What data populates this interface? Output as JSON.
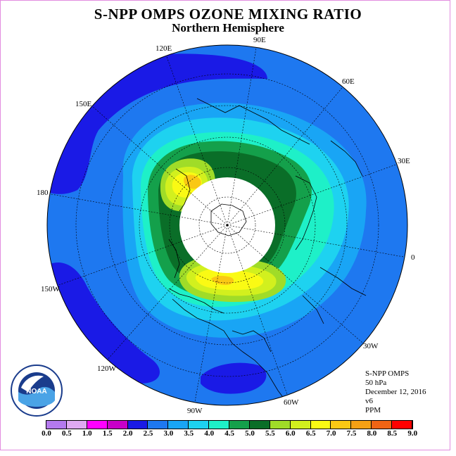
{
  "title": "S-NPP OMPS OZONE MIXING RATIO",
  "subtitle": "Northern Hemisphere",
  "longitude_labels": [
    {
      "id": "lon-90e",
      "text": "90E"
    },
    {
      "id": "lon-120e",
      "text": "120E"
    },
    {
      "id": "lon-60e",
      "text": "60E"
    },
    {
      "id": "lon-150e",
      "text": "150E"
    },
    {
      "id": "lon-30e",
      "text": "30E"
    },
    {
      "id": "lon-180",
      "text": "180"
    },
    {
      "id": "lon-0",
      "text": "0"
    },
    {
      "id": "lon-150w",
      "text": "150W"
    },
    {
      "id": "lon-30w",
      "text": "30W"
    },
    {
      "id": "lon-120w",
      "text": "120W"
    },
    {
      "id": "lon-60w",
      "text": "60W"
    },
    {
      "id": "lon-90w",
      "text": "90W"
    }
  ],
  "info": {
    "instrument": "S-NPP OMPS",
    "level": "50 hPa",
    "date": "December 12, 2016",
    "version": "v6",
    "units": "PPM"
  },
  "logo_text": "NOAA",
  "colorbar": {
    "ticks": [
      "0.0",
      "0.5",
      "1.0",
      "1.5",
      "2.0",
      "2.5",
      "3.0",
      "3.5",
      "4.0",
      "4.5",
      "5.0",
      "5.5",
      "6.0",
      "6.5",
      "7.0",
      "7.5",
      "8.0",
      "8.5",
      "9.0"
    ],
    "colors": [
      "#b47aee",
      "#dfa9f2",
      "#ff00ff",
      "#c800c8",
      "#1a1ae6",
      "#1e78f0",
      "#19a5f5",
      "#1ed2f0",
      "#1ef0c8",
      "#14a04b",
      "#0a6e28",
      "#a0dc28",
      "#d2f01e",
      "#fafa14",
      "#fac814",
      "#f5a014",
      "#f06414",
      "#ff0000",
      "#8c5a3c"
    ]
  },
  "colors": {
    "background_field": "#1e78f0",
    "polar_night": "#ffffff"
  }
}
